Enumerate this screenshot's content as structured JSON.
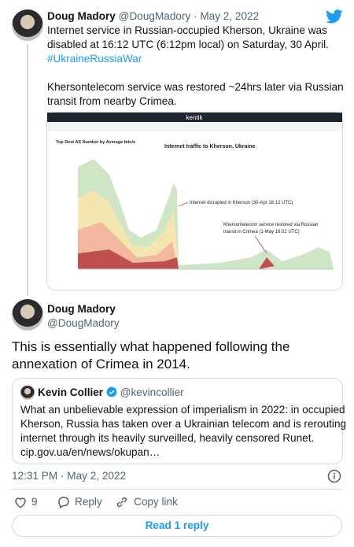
{
  "tweet": {
    "name": "Doug Madory",
    "handle_date": "@DougMadory · May 2, 2022",
    "lines": [
      "Internet service in Russian-occupied Kherson, Ukraine was",
      "disabled at 16:12 UTC (6:12pm local) on Saturday, 30 April."
    ],
    "hashtag": "#UkraineRussiaWar",
    "lines2": [
      "Khersontelecom service was restored ~24hrs later via Russian",
      "transit from nearby Crimea."
    ],
    "image": {
      "brand": "kentik",
      "panel_title": "Top Dest AS Number by Average bits/s",
      "chart_title": "Internet traffic to Kherson, Ukraine",
      "annotation1": "Internet disrupted in Kherson (30-Apr 16:12 UTC)",
      "annotation2": [
        "Khersontelecom service restored via Russian",
        "transit in Crimea (1-May 16:02 UTC)"
      ]
    }
  },
  "reply": {
    "name": "Doug Madory",
    "handle": "@DougMadory",
    "lines": [
      "This is essentially what happened following the",
      "annexation of Crimea in 2014."
    ],
    "quote": {
      "name": "Kevin Collier",
      "handle": "@kevincollier",
      "lines": [
        "What an unbelievable expression of imperialism in 2022: in occupied",
        "Kherson, Russia has taken over a Ukrainian telecom and is rerouting",
        "internet through its heavily surveilled, heavily censored Runet.",
        "cip.gov.ua/en/news/okupan…"
      ]
    },
    "timestamp": "12:31 PM · May 2, 2022",
    "likes": "9",
    "reply_label": "Reply",
    "copy_label": "Copy link",
    "read_replies": "Read 1 reply"
  }
}
